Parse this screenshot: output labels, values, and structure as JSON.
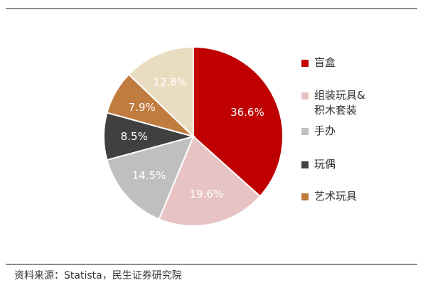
{
  "chart_data": {
    "type": "pie",
    "start_angle_deg": 0,
    "direction": "clockwise",
    "slices": [
      {
        "label": "盲盒",
        "value": 36.6,
        "value_label": "36.6%",
        "color": "#c00000",
        "label_color": "#ffffff"
      },
      {
        "label": "组装玩具&\n积木套装",
        "value": 19.6,
        "value_label": "19.6%",
        "color": "#e8c3c3",
        "label_color": "#ffffff"
      },
      {
        "label": "手办",
        "value": 14.5,
        "value_label": "14.5%",
        "color": "#bfbfbf",
        "label_color": "#ffffff"
      },
      {
        "label": "玩偶",
        "value": 8.5,
        "value_label": "8.5%",
        "color": "#404040",
        "label_color": "#ffffff"
      },
      {
        "label": "艺术玩具",
        "value": 7.9,
        "value_label": "7.9%",
        "color": "#c07b3f",
        "label_color": "#ffffff"
      },
      {
        "label": "",
        "value": 12.8,
        "value_label": "12.8%",
        "color": "#eadcc0",
        "label_color": "#ffffff"
      }
    ],
    "legend_position": "right"
  },
  "source_note": "资料来源：Statista，民生证券研究院"
}
